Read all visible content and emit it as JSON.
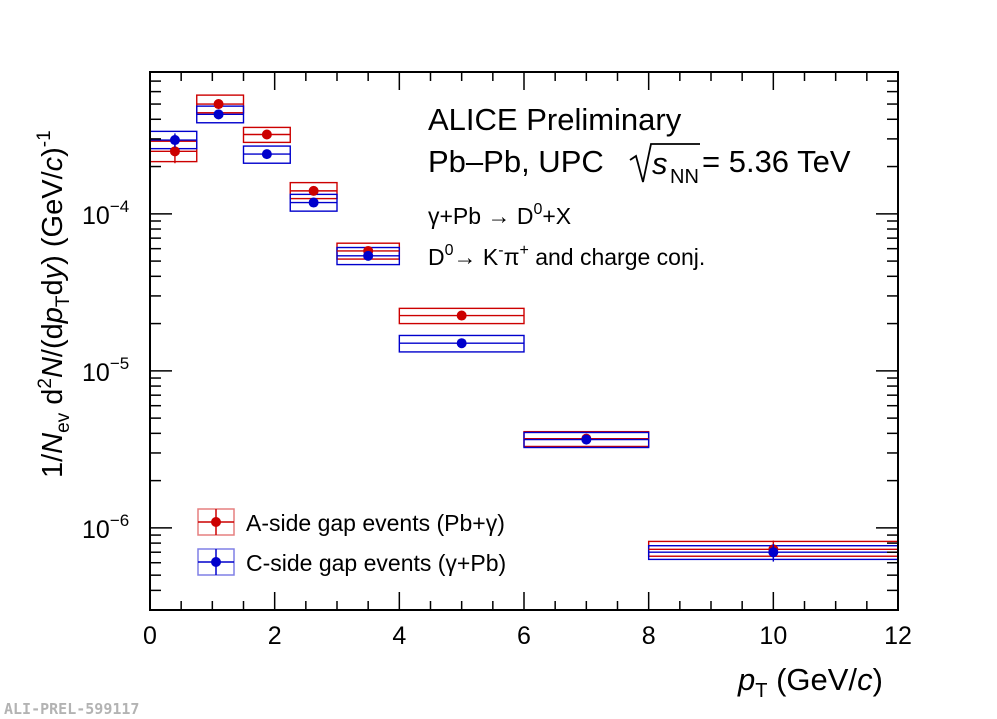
{
  "chart_data": {
    "type": "scatter",
    "title_lines": [
      "ALICE Preliminary",
      "Pb–Pb, UPC"
    ],
    "energy": {
      "symbol": "s",
      "subscript": "NN",
      "value": " = 5.36 TeV"
    },
    "process_line": {
      "prefix": "γ+Pb → D",
      "sup": "0",
      "suffix": "+X"
    },
    "decay_line": {
      "prefix": "D",
      "sup0": "0",
      "mid": "→ K",
      "sup1": "-",
      "mid2": "π",
      "sup2": "+",
      "suffix": " and charge conj."
    },
    "xlabel": {
      "var": "p",
      "sub": "T",
      "unit": " (GeV/",
      "c": "c",
      "close": ")"
    },
    "ylabel": {
      "p1": "1/",
      "N": "N",
      "ev": "ev",
      "p2": " d",
      "sq": "2",
      "N2": "N",
      "p3": "/(d",
      "p": "p",
      "T": "T",
      "p4": "d",
      "y": "y",
      "p5": ")  (GeV/",
      "c": "c",
      "p6": ")",
      "exp": "-1"
    },
    "xlim": [
      0,
      12
    ],
    "ylim": [
      3e-07,
      0.0008
    ],
    "yscale": "log",
    "xticks": [
      0,
      2,
      4,
      6,
      8,
      10,
      12
    ],
    "xtick_labels": [
      "0",
      "2",
      "4",
      "6",
      "8",
      "10",
      "12"
    ],
    "yticks": [
      1e-06,
      1e-05,
      0.0001
    ],
    "ytick_labels": [
      {
        "base": "10",
        "exp": "−6"
      },
      {
        "base": "10",
        "exp": "−5"
      },
      {
        "base": "10",
        "exp": "−4"
      }
    ],
    "legend_position": "bottom-left",
    "watermark": "ALI-PREL-599117",
    "series": [
      {
        "name": "A-side gap events (Pb+γ)",
        "color": "#cc0000",
        "x": [
          0.4,
          1.1,
          1.875,
          2.625,
          3.5,
          5.0,
          7.0,
          10.0
        ],
        "xlow": [
          0.0,
          0.75,
          1.5,
          2.25,
          3.0,
          4.0,
          6.0,
          8.0
        ],
        "xhigh": [
          0.75,
          1.5,
          2.25,
          3.0,
          4.0,
          6.0,
          8.0,
          12.0
        ],
        "y": [
          0.00025,
          0.0005,
          0.00032,
          0.00014,
          5.8e-05,
          2.25e-05,
          3.7e-06,
          7.3e-07
        ],
        "stat_err": [
          4e-05,
          3.5e-05,
          1.8e-05,
          8e-06,
          3.5e-06,
          1e-06,
          2.5e-07,
          1e-07
        ],
        "sys_low": [
          0.000215,
          0.00044,
          0.000285,
          0.000125,
          5.15e-05,
          2e-05,
          3.3e-06,
          6.6e-07
        ],
        "sys_high": [
          0.00029,
          0.00057,
          0.000355,
          0.000158,
          6.5e-05,
          2.5e-05,
          4.1e-06,
          8.2e-07
        ]
      },
      {
        "name": "C-side gap events (γ+Pb)",
        "color": "#0000cc",
        "x": [
          0.4,
          1.1,
          1.875,
          2.625,
          3.5,
          5.0,
          7.0,
          10.0
        ],
        "xlow": [
          0.0,
          0.75,
          1.5,
          2.25,
          3.0,
          4.0,
          6.0,
          8.0
        ],
        "xhigh": [
          0.75,
          1.5,
          2.25,
          3.0,
          4.0,
          6.0,
          8.0,
          12.0
        ],
        "y": [
          0.000295,
          0.00043,
          0.00024,
          0.000118,
          5.4e-05,
          1.5e-05,
          3.65e-06,
          7e-07
        ],
        "stat_err": [
          3e-05,
          3e-05,
          1.3e-05,
          7e-06,
          3e-06,
          7e-07,
          2.5e-07,
          9e-08
        ],
        "sys_low": [
          0.00026,
          0.00038,
          0.00021,
          0.000104,
          4.75e-05,
          1.32e-05,
          3.25e-06,
          6.3e-07
        ],
        "sys_high": [
          0.000335,
          0.000485,
          0.00027,
          0.000133,
          6.1e-05,
          1.68e-05,
          4.05e-06,
          7.7e-07
        ]
      }
    ]
  }
}
